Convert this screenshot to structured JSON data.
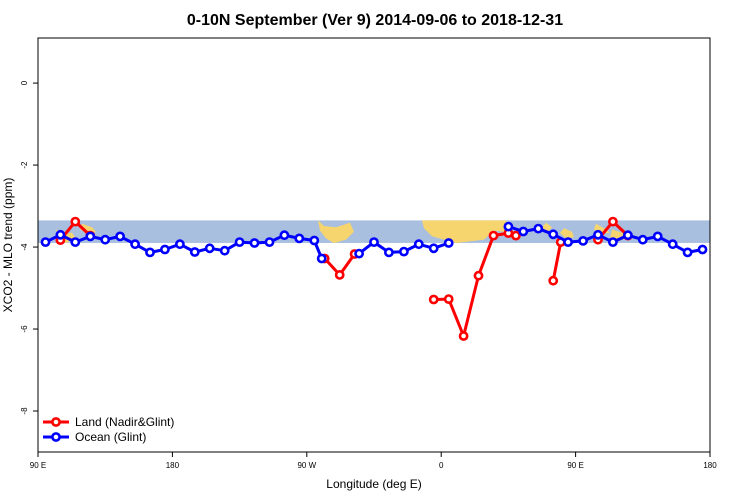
{
  "chart_data": {
    "type": "line",
    "title": "0-10N September (Ver 9)   2014-09-06 to 2018-12-31",
    "xlabel": "Longitude (deg E)",
    "ylabel": "XCO2 - MLO trend (ppm)",
    "xlim": [
      90,
      540
    ],
    "ylim": [
      -9,
      1.1
    ],
    "x_ticks": [
      {
        "value": 90,
        "label": "90 E"
      },
      {
        "value": 180,
        "label": "180"
      },
      {
        "value": 270,
        "label": "90 W"
      },
      {
        "value": 360,
        "label": "0"
      },
      {
        "value": 450,
        "label": "90 E"
      },
      {
        "value": 540,
        "label": "180"
      }
    ],
    "y_ticks": [
      {
        "value": 0,
        "label": "0"
      },
      {
        "value": -2,
        "label": "-2"
      },
      {
        "value": -4,
        "label": "-4"
      },
      {
        "value": -6,
        "label": "-6"
      },
      {
        "value": -8,
        "label": "-8"
      }
    ],
    "grid": false,
    "legend_position": "bottom-left",
    "map_band": {
      "y_from": -3.9,
      "y_to": -3.35,
      "ocean_color": "#a9bfdf",
      "land_color": "#f7d56e"
    },
    "series": [
      {
        "name": "Land (Nadir&Glint)",
        "color": "#ff0000",
        "segments": [
          [
            [
              105,
              -3.83
            ],
            [
              115,
              -3.38
            ],
            [
              125,
              -3.72
            ]
          ],
          [
            [
              282,
              -4.28
            ],
            [
              292,
              -4.68
            ],
            [
              302,
              -4.17
            ]
          ],
          [
            [
              355,
              -5.28
            ],
            [
              365,
              -5.27
            ],
            [
              375,
              -6.17
            ],
            [
              385,
              -4.7
            ],
            [
              395,
              -3.72
            ],
            [
              405,
              -3.66
            ],
            [
              410,
              -3.72
            ]
          ],
          [
            [
              435,
              -4.82
            ],
            [
              440,
              -3.88
            ]
          ],
          [
            [
              465,
              -3.82
            ],
            [
              475,
              -3.38
            ],
            [
              485,
              -3.72
            ]
          ]
        ]
      },
      {
        "name": "Ocean (Glint)",
        "color": "#0000ff",
        "segments": [
          [
            [
              95,
              -3.88
            ],
            [
              105,
              -3.7
            ],
            [
              115,
              -3.88
            ],
            [
              125,
              -3.74
            ],
            [
              135,
              -3.82
            ],
            [
              145,
              -3.74
            ],
            [
              155,
              -3.93
            ],
            [
              165,
              -4.13
            ],
            [
              175,
              -4.06
            ],
            [
              185,
              -3.93
            ],
            [
              195,
              -4.12
            ],
            [
              205,
              -4.03
            ],
            [
              215,
              -4.09
            ],
            [
              225,
              -3.88
            ],
            [
              235,
              -3.9
            ],
            [
              245,
              -3.88
            ],
            [
              255,
              -3.71
            ],
            [
              265,
              -3.79
            ],
            [
              275,
              -3.84
            ],
            [
              280,
              -4.28
            ]
          ],
          [
            [
              305,
              -4.16
            ],
            [
              315,
              -3.88
            ],
            [
              325,
              -4.13
            ],
            [
              335,
              -4.11
            ],
            [
              345,
              -3.93
            ],
            [
              355,
              -4.03
            ],
            [
              365,
              -3.9
            ]
          ],
          [
            [
              405,
              -3.5
            ],
            [
              415,
              -3.62
            ],
            [
              425,
              -3.55
            ],
            [
              435,
              -3.69
            ],
            [
              445,
              -3.88
            ],
            [
              455,
              -3.85
            ],
            [
              465,
              -3.7
            ],
            [
              475,
              -3.88
            ],
            [
              485,
              -3.71
            ],
            [
              495,
              -3.82
            ],
            [
              505,
              -3.74
            ],
            [
              515,
              -3.93
            ],
            [
              525,
              -4.13
            ],
            [
              535,
              -4.06
            ]
          ]
        ]
      }
    ]
  }
}
